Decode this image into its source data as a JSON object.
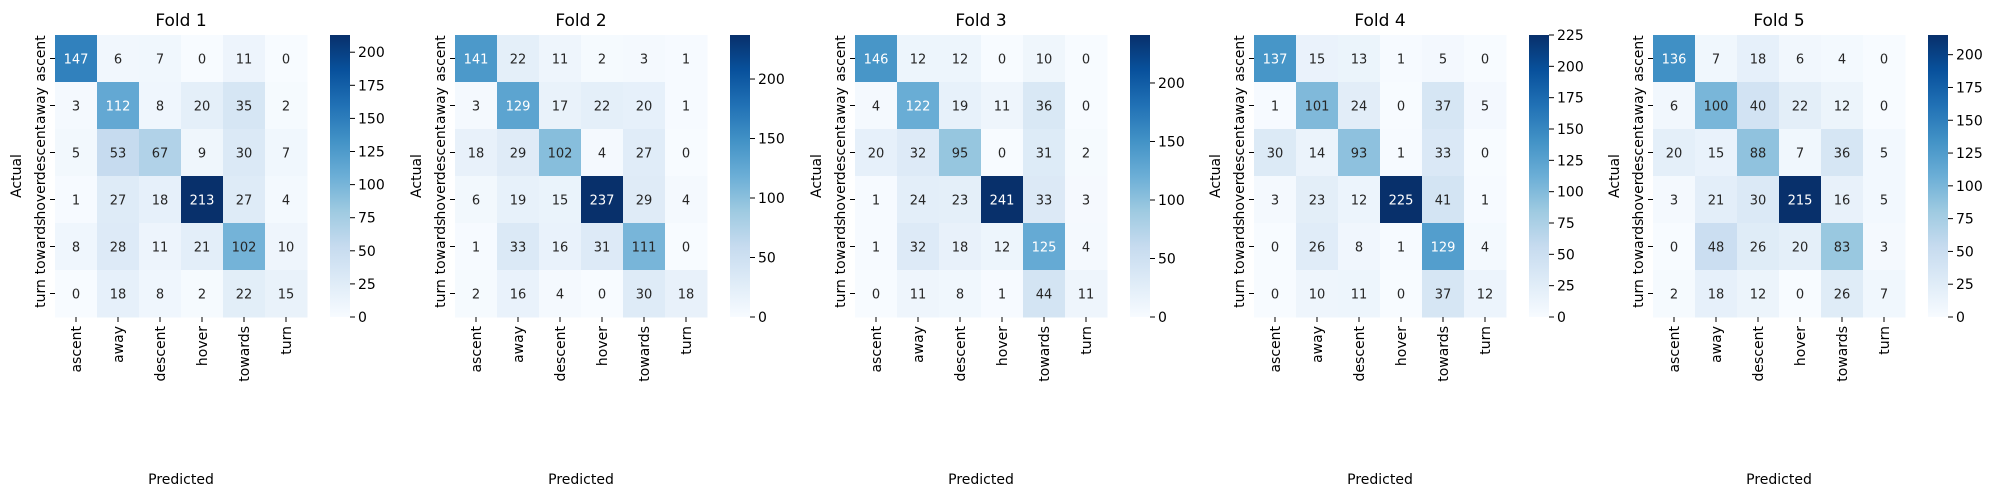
{
  "chart_data": {
    "type": "heatmap",
    "colormap": "Blues",
    "annotated": true,
    "grid": false,
    "legend": "colorbar-right",
    "labels": [
      "ascent",
      "away",
      "descent",
      "hover",
      "towards",
      "turn"
    ],
    "xlabel": "Predicted",
    "ylabel": "Actual",
    "panels": [
      {
        "title": "Fold 1",
        "vmin": 0,
        "vmax": 213,
        "colorbar_ticks": [
          0,
          25,
          50,
          75,
          100,
          125,
          150,
          175,
          200
        ],
        "matrix": [
          [
            147,
            6,
            7,
            0,
            11,
            0
          ],
          [
            3,
            112,
            8,
            20,
            35,
            2
          ],
          [
            5,
            53,
            67,
            9,
            30,
            7
          ],
          [
            1,
            27,
            18,
            213,
            27,
            4
          ],
          [
            8,
            28,
            11,
            21,
            102,
            10
          ],
          [
            0,
            18,
            8,
            2,
            22,
            15
          ]
        ]
      },
      {
        "title": "Fold 2",
        "vmin": 0,
        "vmax": 237,
        "colorbar_ticks": [
          0,
          50,
          100,
          150,
          200
        ],
        "matrix": [
          [
            141,
            22,
            11,
            2,
            3,
            1
          ],
          [
            3,
            129,
            17,
            22,
            20,
            1
          ],
          [
            18,
            29,
            102,
            4,
            27,
            0
          ],
          [
            6,
            19,
            15,
            237,
            29,
            4
          ],
          [
            1,
            33,
            16,
            31,
            111,
            0
          ],
          [
            2,
            16,
            4,
            0,
            30,
            18
          ]
        ]
      },
      {
        "title": "Fold 3",
        "vmin": 0,
        "vmax": 241,
        "colorbar_ticks": [
          0,
          50,
          100,
          150,
          200
        ],
        "matrix": [
          [
            146,
            12,
            12,
            0,
            10,
            0
          ],
          [
            4,
            122,
            19,
            11,
            36,
            0
          ],
          [
            20,
            32,
            95,
            0,
            31,
            2
          ],
          [
            1,
            24,
            23,
            241,
            33,
            3
          ],
          [
            1,
            32,
            18,
            12,
            125,
            4
          ],
          [
            0,
            11,
            8,
            1,
            44,
            11
          ]
        ]
      },
      {
        "title": "Fold 4",
        "vmin": 0,
        "vmax": 225,
        "colorbar_ticks": [
          0,
          25,
          50,
          75,
          100,
          125,
          150,
          175,
          200,
          225
        ],
        "matrix": [
          [
            137,
            15,
            13,
            1,
            5,
            0
          ],
          [
            1,
            101,
            24,
            0,
            37,
            5
          ],
          [
            30,
            14,
            93,
            1,
            33,
            0
          ],
          [
            3,
            23,
            12,
            225,
            41,
            1
          ],
          [
            0,
            26,
            8,
            1,
            129,
            4
          ],
          [
            0,
            10,
            11,
            0,
            37,
            12
          ]
        ]
      },
      {
        "title": "Fold 5",
        "vmin": 0,
        "vmax": 215,
        "colorbar_ticks": [
          0,
          25,
          50,
          75,
          100,
          125,
          150,
          175,
          200
        ],
        "matrix": [
          [
            136,
            7,
            18,
            6,
            4,
            0
          ],
          [
            6,
            100,
            40,
            22,
            12,
            0
          ],
          [
            20,
            15,
            88,
            7,
            36,
            5
          ],
          [
            3,
            21,
            30,
            215,
            16,
            5
          ],
          [
            0,
            48,
            26,
            20,
            83,
            3
          ],
          [
            2,
            18,
            12,
            0,
            26,
            7
          ]
        ]
      }
    ]
  }
}
